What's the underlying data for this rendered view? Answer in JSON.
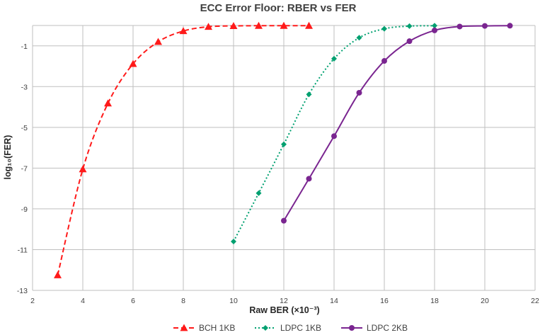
{
  "chart_data": {
    "type": "line",
    "title": "ECC Error Floor: RBER vs FER",
    "xlabel": "Raw BER (×10⁻³)",
    "ylabel": "log₁₀(FER)",
    "xlim": [
      2,
      22
    ],
    "ylim": [
      -13,
      0
    ],
    "x_ticks": [
      2,
      4,
      6,
      8,
      10,
      12,
      14,
      16,
      18,
      20,
      22
    ],
    "y_ticks": [
      -1,
      -3,
      -5,
      -7,
      -9,
      -11,
      -13
    ],
    "grid": true,
    "legend_position": "bottom",
    "series": [
      {
        "name": "BCH 1KB",
        "color": "#ff1a1a",
        "line_style": "dashed",
        "marker": "triangle",
        "x": [
          3,
          4,
          5,
          6,
          7,
          8,
          9,
          10,
          11,
          12,
          13
        ],
        "y": [
          -12.25,
          -7.05,
          -3.82,
          -1.88,
          -0.8,
          -0.27,
          -0.06,
          -0.02,
          -0.01,
          -0.01,
          -0.01
        ]
      },
      {
        "name": "LDPC 1KB",
        "color": "#00a070",
        "line_style": "dotted",
        "marker": "diamond",
        "x": [
          10,
          11,
          12,
          13,
          14,
          15,
          16,
          17,
          18
        ],
        "y": [
          -10.6,
          -8.23,
          -5.83,
          -3.38,
          -1.63,
          -0.6,
          -0.16,
          -0.03,
          -0.01
        ]
      },
      {
        "name": "LDPC 2KB",
        "color": "#7a2590",
        "line_style": "solid",
        "marker": "circle",
        "x": [
          12,
          13,
          14,
          15,
          16,
          17,
          18,
          19,
          20,
          21
        ],
        "y": [
          -9.58,
          -7.52,
          -5.43,
          -3.3,
          -1.74,
          -0.77,
          -0.24,
          -0.05,
          -0.02,
          -0.01
        ]
      }
    ]
  }
}
